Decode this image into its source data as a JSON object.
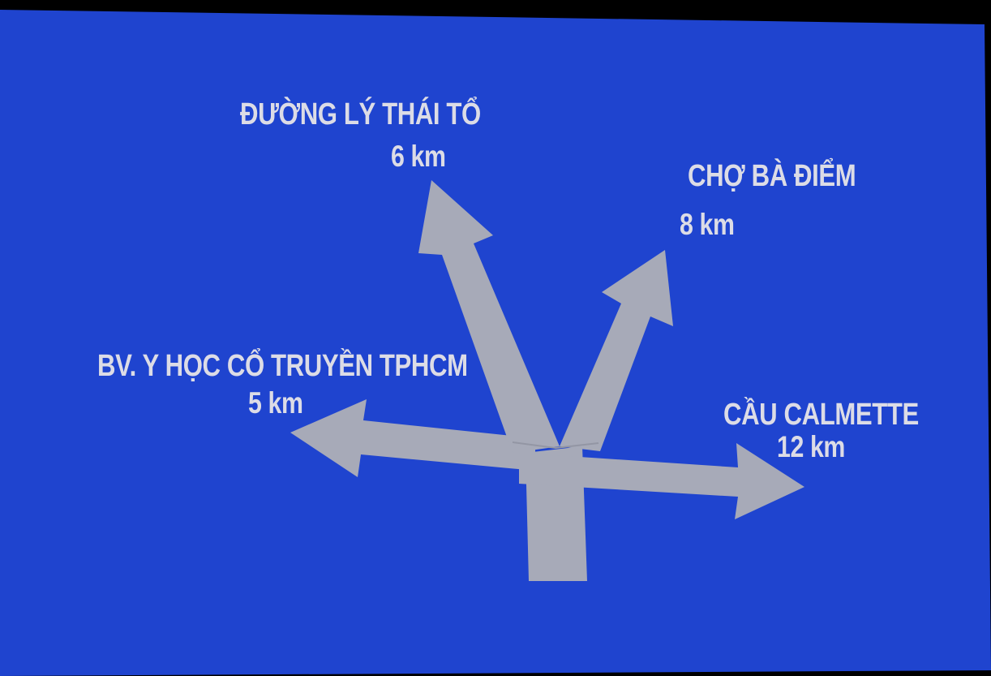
{
  "sign": {
    "background_color": "#1f44cf",
    "arrow_color": "#a7aab8",
    "text_color": "#dcdce6",
    "destinations": {
      "ly_thai_to": {
        "name": "ĐƯỜNG LÝ THÁI TỔ",
        "distance": "6 km",
        "direction": "up"
      },
      "cho_ba_diem": {
        "name": "CHỢ BÀ ĐIỂM",
        "distance": "8 km",
        "direction": "up-right"
      },
      "bv_y_hoc": {
        "name": "BV. Y HỌC CỔ TRUYỀN TPHCM",
        "distance": "5 km",
        "direction": "left"
      },
      "cau_calmette": {
        "name": "CẦU CALMETTE",
        "distance": "12 km",
        "direction": "right"
      }
    }
  }
}
